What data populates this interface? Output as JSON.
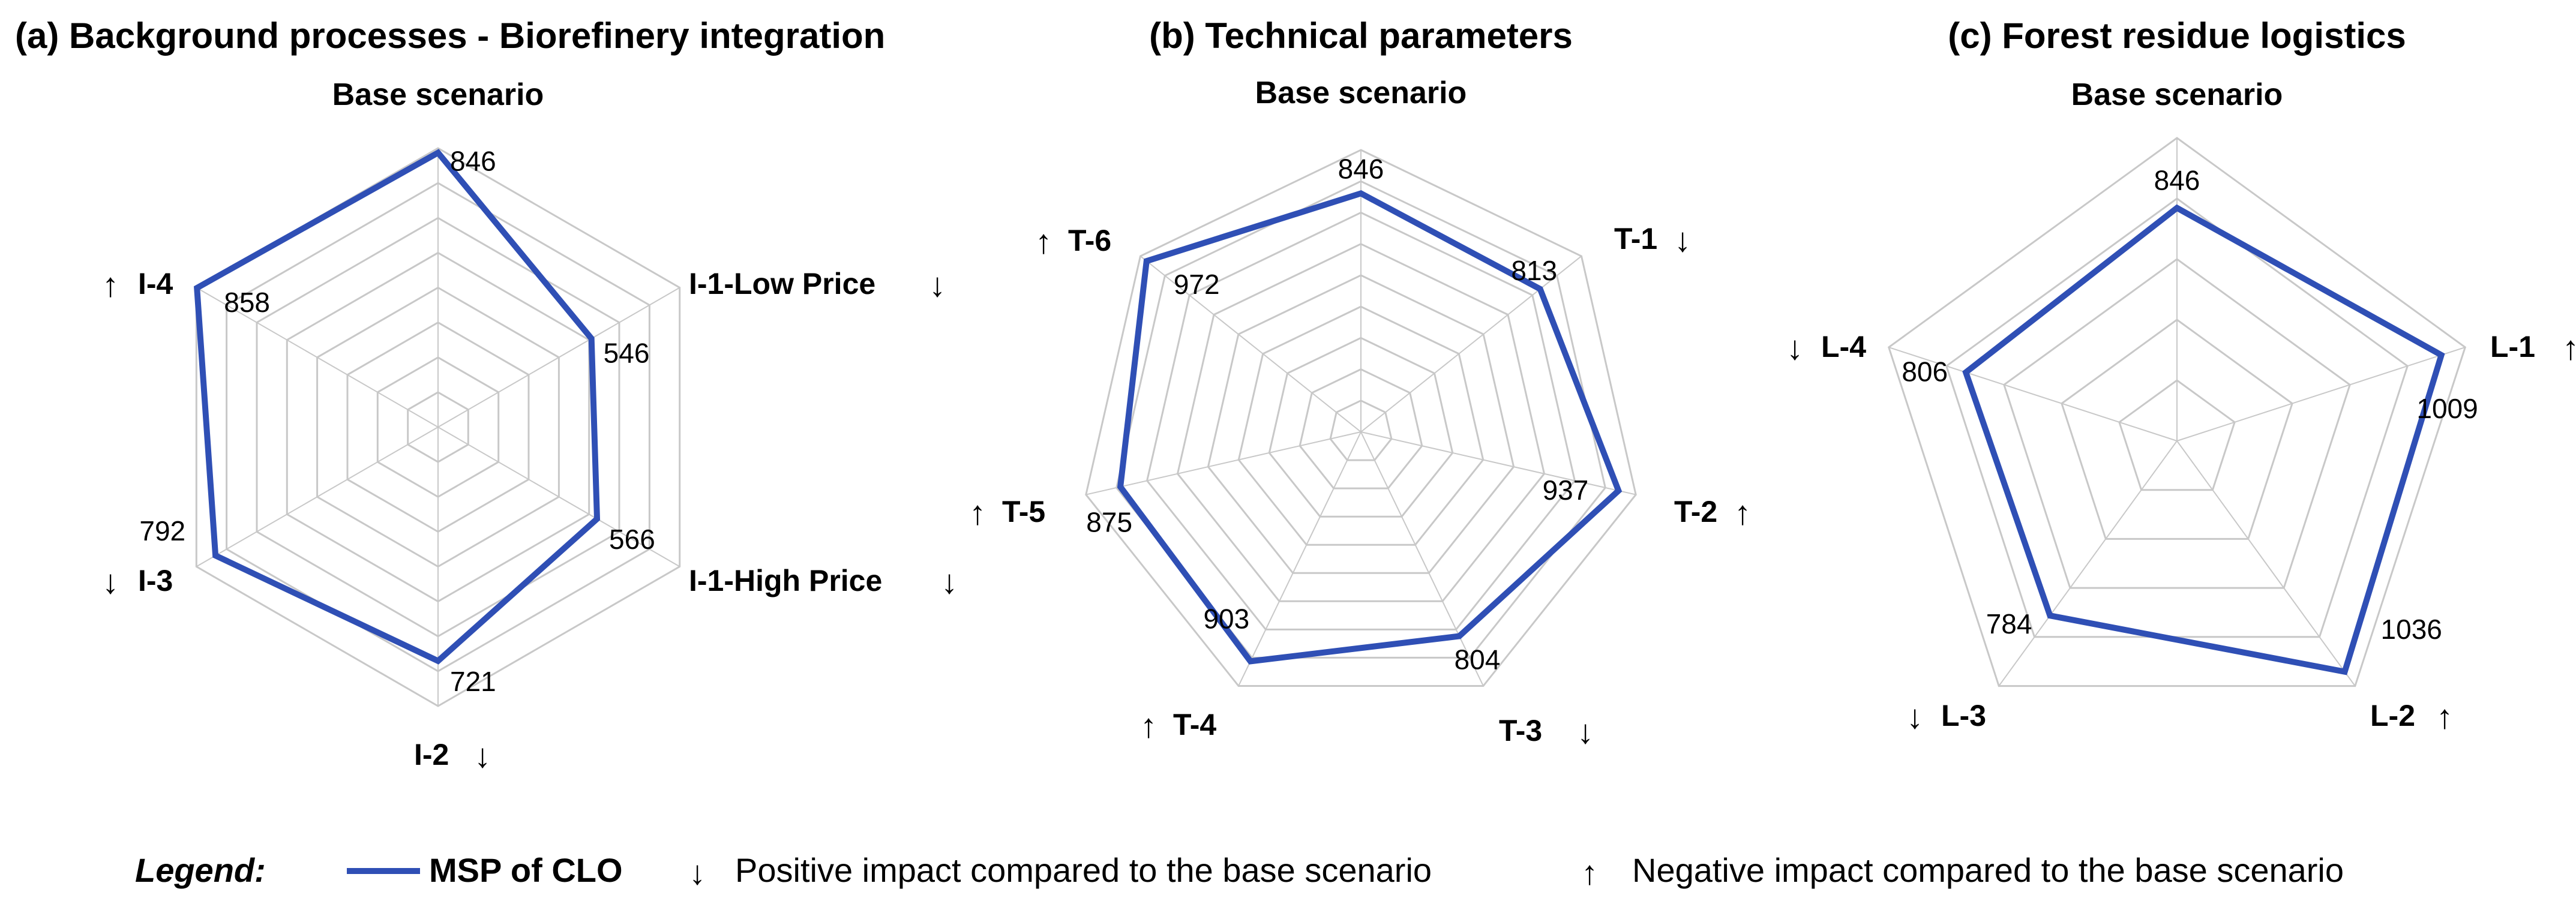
{
  "chart_data": [
    {
      "type": "radar",
      "title": "(a) Background processes - Biorefinery integration",
      "axes": [
        {
          "label": "Base scenario",
          "value": 846,
          "impact": ""
        },
        {
          "label": "I-1-Low Price",
          "value": 546,
          "impact": "↓"
        },
        {
          "label": "I-1-High Price",
          "value": 566,
          "impact": "↓"
        },
        {
          "label": "I-2",
          "value": 721,
          "impact": "↓"
        },
        {
          "label": "I-3",
          "value": 792,
          "impact": "↓"
        },
        {
          "label": "I-4",
          "value": 858,
          "impact": "↑"
        }
      ],
      "series_name": "MSP of CLO",
      "rmax": 860
    },
    {
      "type": "radar",
      "title": "(b) Technical parameters",
      "axes": [
        {
          "label": "Base scenario",
          "value": 846,
          "impact": ""
        },
        {
          "label": "T-1",
          "value": 813,
          "impact": "↓"
        },
        {
          "label": "T-2",
          "value": 937,
          "impact": "↑"
        },
        {
          "label": "T-3",
          "value": 804,
          "impact": "↓"
        },
        {
          "label": "T-4",
          "value": 903,
          "impact": "↑"
        },
        {
          "label": "T-5",
          "value": 875,
          "impact": "↑"
        },
        {
          "label": "T-6",
          "value": 972,
          "impact": "↑"
        }
      ],
      "series_name": "MSP of CLO",
      "rmax": 1000
    },
    {
      "type": "radar",
      "title": "(c) Forest residue logistics",
      "axes": [
        {
          "label": "Base scenario",
          "value": 846,
          "impact": ""
        },
        {
          "label": "L-1",
          "value": 1009,
          "impact": "↑"
        },
        {
          "label": "L-2",
          "value": 1036,
          "impact": "↑"
        },
        {
          "label": "L-3",
          "value": 784,
          "impact": "↓"
        },
        {
          "label": "L-4",
          "value": 806,
          "impact": "↓"
        }
      ],
      "series_name": "MSP of CLO",
      "rmax": 1100
    }
  ],
  "legend": {
    "title": "Legend:",
    "series_label": "MSP of CLO",
    "positive_arrow": "↓",
    "positive_text": "Positive impact compared to the base scenario",
    "negative_arrow": "↑",
    "negative_text": "Negative impact compared to the base scenario"
  },
  "colors": {
    "series": "#2f4fb5",
    "grid": "#c8c8c8"
  }
}
